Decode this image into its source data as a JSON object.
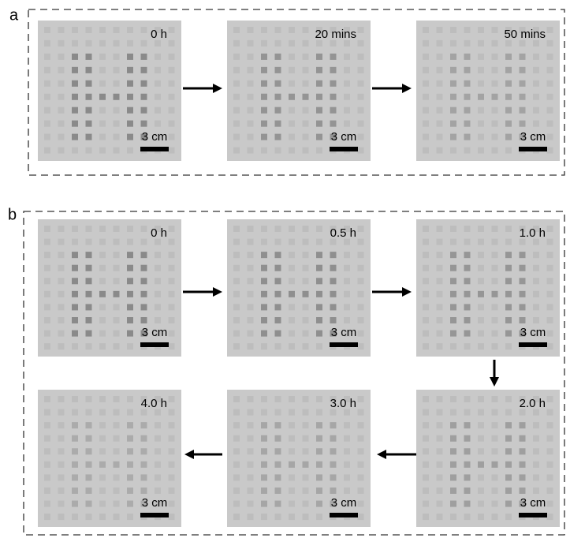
{
  "panels": [
    {
      "label": "a",
      "images": [
        {
          "time": "0 h",
          "scale_bar": "3 cm"
        },
        {
          "time": "20 mins",
          "scale_bar": "3 cm"
        },
        {
          "time": "50 mins",
          "scale_bar": "3 cm"
        }
      ]
    },
    {
      "label": "b",
      "images": [
        {
          "time": "0 h",
          "scale_bar": "3 cm"
        },
        {
          "time": "0.5 h",
          "scale_bar": "3 cm"
        },
        {
          "time": "1.0 h",
          "scale_bar": "3 cm"
        },
        {
          "time": "2.0 h",
          "scale_bar": "3 cm"
        },
        {
          "time": "3.0 h",
          "scale_bar": "3 cm"
        },
        {
          "time": "4.0 h",
          "scale_bar": "3 cm"
        }
      ]
    }
  ]
}
